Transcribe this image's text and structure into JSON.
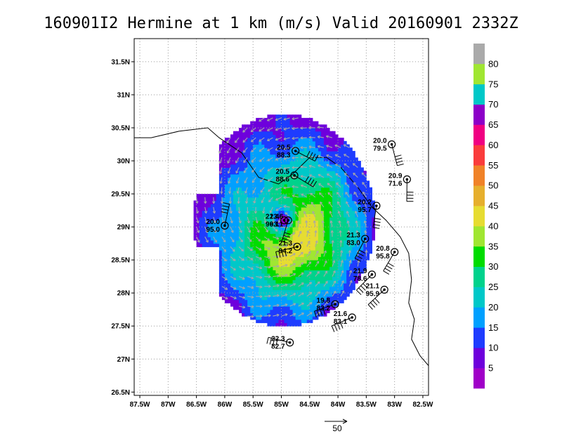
{
  "chart_data": {
    "type": "heatmap",
    "title": "160901I2 Hermine at 1 km (m/s) Valid 20160901 2332Z",
    "xlim": [
      -87.6,
      -82.4
    ],
    "ylim": [
      26.45,
      31.85
    ],
    "x_ticks": [
      {
        "value": -87.5,
        "label": "87.5W"
      },
      {
        "value": -87,
        "label": "87W"
      },
      {
        "value": -86.5,
        "label": "86.5W"
      },
      {
        "value": -86,
        "label": "86W"
      },
      {
        "value": -85.5,
        "label": "85.5W"
      },
      {
        "value": -85,
        "label": "85W"
      },
      {
        "value": -84.5,
        "label": "84.5W"
      },
      {
        "value": -84,
        "label": "84W"
      },
      {
        "value": -83.5,
        "label": "83.5W"
      },
      {
        "value": -83,
        "label": "83W"
      },
      {
        "value": -82.5,
        "label": "82.5W"
      }
    ],
    "y_ticks": [
      {
        "value": 26.5,
        "label": "26.5N"
      },
      {
        "value": 27,
        "label": "27N"
      },
      {
        "value": 27.5,
        "label": "27.5N"
      },
      {
        "value": 28,
        "label": "28N"
      },
      {
        "value": 28.5,
        "label": "28.5N"
      },
      {
        "value": 29,
        "label": "29N"
      },
      {
        "value": 29.5,
        "label": "29.5N"
      },
      {
        "value": 30,
        "label": "30N"
      },
      {
        "value": 30.5,
        "label": "30.5N"
      },
      {
        "value": 31,
        "label": "31N"
      },
      {
        "value": 31.5,
        "label": "31.5N"
      }
    ],
    "grid": true,
    "colorbar": {
      "placement": "right",
      "bins": [
        {
          "from": 0,
          "to": 5,
          "color": "#a000c8"
        },
        {
          "from": 5,
          "to": 10,
          "color": "#6e00dc"
        },
        {
          "from": 10,
          "to": 15,
          "color": "#1e3cff"
        },
        {
          "from": 15,
          "to": 20,
          "color": "#00a0ff"
        },
        {
          "from": 20,
          "to": 25,
          "color": "#00c8c8"
        },
        {
          "from": 25,
          "to": 30,
          "color": "#00d28c"
        },
        {
          "from": 30,
          "to": 35,
          "color": "#00dc00"
        },
        {
          "from": 35,
          "to": 40,
          "color": "#a0e632"
        },
        {
          "from": 40,
          "to": 45,
          "color": "#e6dc32"
        },
        {
          "from": 45,
          "to": 50,
          "color": "#e6af2d"
        },
        {
          "from": 50,
          "to": 55,
          "color": "#f08228"
        },
        {
          "from": 55,
          "to": 60,
          "color": "#fa3c3c"
        },
        {
          "from": 60,
          "to": 65,
          "color": "#f00082"
        },
        {
          "from": 65,
          "to": 70,
          "color": "#8c00c8"
        },
        {
          "from": 70,
          "to": 75,
          "color": "#00c8c8"
        },
        {
          "from": 75,
          "to": 80,
          "color": "#a0e632"
        },
        {
          "from": 80,
          "to": 85,
          "color": "#aaaaaa"
        }
      ],
      "labels": [
        "5",
        "10",
        "15",
        "20",
        "25",
        "30",
        "35",
        "40",
        "45",
        "50",
        "55",
        "60",
        "65",
        "70",
        "75",
        "80"
      ]
    },
    "storm_center": {
      "lon": -84.95,
      "lat": 29.1,
      "color": "#8c00c8"
    },
    "wind_field": {
      "inner_radius_deg": 0.12,
      "radius_deg": 1.6,
      "max_speed_ms": 40,
      "rmw_deg": 0.45
    },
    "coastline": [
      [
        -87.6,
        30.35
      ],
      [
        -87.3,
        30.35
      ],
      [
        -86.8,
        30.45
      ],
      [
        -86.3,
        30.5
      ],
      [
        -86.1,
        30.35
      ],
      [
        -85.7,
        30.12
      ],
      [
        -85.4,
        29.75
      ],
      [
        -85.05,
        29.65
      ],
      [
        -84.8,
        29.8
      ],
      [
        -84.5,
        30.05
      ],
      [
        -84.2,
        30.05
      ],
      [
        -83.95,
        29.9
      ],
      [
        -83.65,
        29.6
      ],
      [
        -83.4,
        29.3
      ],
      [
        -83.15,
        29.1
      ],
      [
        -82.9,
        28.85
      ],
      [
        -82.75,
        28.6
      ],
      [
        -82.7,
        28.2
      ],
      [
        -82.75,
        27.85
      ],
      [
        -82.65,
        27.6
      ],
      [
        -82.7,
        27.3
      ],
      [
        -82.55,
        27.05
      ],
      [
        -82.4,
        26.9
      ]
    ],
    "observations": [
      {
        "lon": -84.75,
        "lat": 30.15,
        "value": "20.5",
        "pressure": "88.3"
      },
      {
        "lon": -84.77,
        "lat": 29.78,
        "value": "20.5",
        "pressure": "88.6"
      },
      {
        "lon": -83.05,
        "lat": 30.25,
        "value": "20.0",
        "pressure": "79.5"
      },
      {
        "lon": -82.78,
        "lat": 29.72,
        "value": "20.9",
        "pressure": "71.6"
      },
      {
        "lon": -83.32,
        "lat": 29.32,
        "value": "20.2",
        "pressure": "95.7"
      },
      {
        "lon": -84.88,
        "lat": 29.1,
        "value": "23.6",
        "pressure": "93.1"
      },
      {
        "lon": -84.95,
        "lat": 29.1,
        "value": "21.4",
        "pressure": "96.1"
      },
      {
        "lon": -86.0,
        "lat": 29.02,
        "value": "20.0",
        "pressure": "95.0"
      },
      {
        "lon": -83.52,
        "lat": 28.82,
        "value": "21.3",
        "pressure": "83.0"
      },
      {
        "lon": -84.72,
        "lat": 28.7,
        "value": "21.3",
        "pressure": "94.2"
      },
      {
        "lon": -83.0,
        "lat": 28.62,
        "value": "20.8",
        "pressure": "95.8"
      },
      {
        "lon": -83.4,
        "lat": 28.28,
        "value": "21.9",
        "pressure": "78.6"
      },
      {
        "lon": -83.18,
        "lat": 28.05,
        "value": "21.1",
        "pressure": "95.9"
      },
      {
        "lon": -84.05,
        "lat": 27.83,
        "value": "19.8",
        "pressure": "83.2"
      },
      {
        "lon": -83.75,
        "lat": 27.63,
        "value": "21.6",
        "pressure": "83.1"
      },
      {
        "lon": -84.85,
        "lat": 27.25,
        "value": "22.3",
        "pressure": "82.7"
      }
    ],
    "reference_vector": {
      "label": "50"
    }
  }
}
